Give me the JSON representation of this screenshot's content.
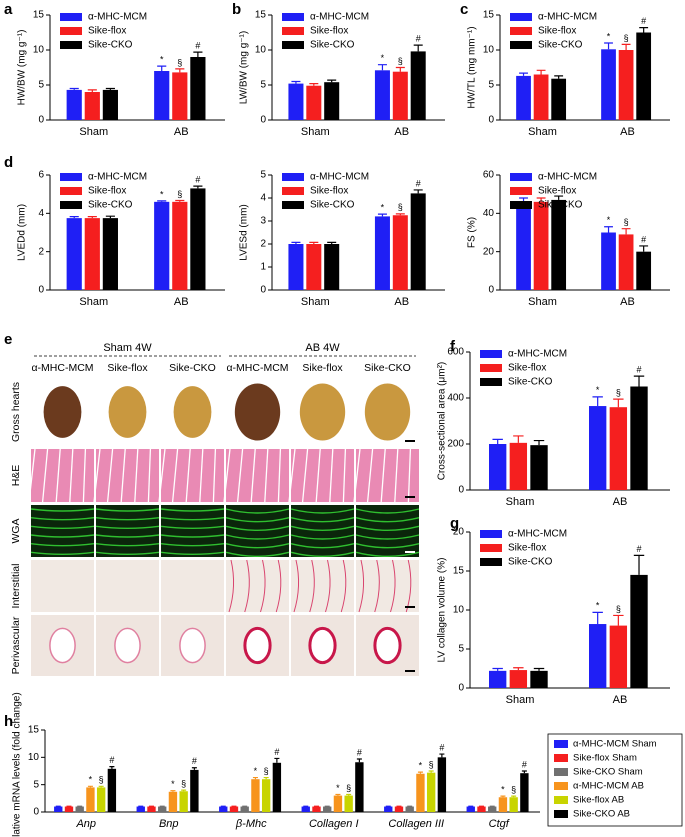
{
  "panel_letters": [
    "a",
    "b",
    "c",
    "d",
    "e",
    "f",
    "g",
    "h"
  ],
  "image_panel": {
    "groups": [
      "Sham 4W",
      "AB 4W"
    ],
    "columns": [
      "α-MHC-MCM",
      "Sike-flox",
      "Sike-CKO",
      "α-MHC-MCM",
      "Sike-flox",
      "Sike-CKO"
    ],
    "rows": [
      "Gross hearts",
      "H&E",
      "WGA",
      "Interstitial",
      "Perivascular"
    ]
  },
  "chart_data": [
    {
      "type": "bar",
      "y_label": "HW/BW (mg g⁻¹)",
      "categories": [
        "Sham",
        "AB"
      ],
      "ylim": [
        0,
        15
      ],
      "yticks": [
        0,
        5,
        10,
        15
      ],
      "legend": "upper left",
      "series": [
        {
          "name": "α-MHC-MCM",
          "color": "#1f1ff5",
          "values": [
            4.3,
            7.0
          ],
          "errors": [
            0.2,
            0.7
          ],
          "labels": [
            null,
            "*"
          ]
        },
        {
          "name": "Sike-flox",
          "color": "#f51f1f",
          "values": [
            4.0,
            6.8
          ],
          "errors": [
            0.3,
            0.5
          ],
          "labels": [
            null,
            "§"
          ]
        },
        {
          "name": "Sike-CKO",
          "color": "#000000",
          "values": [
            4.3,
            9.0
          ],
          "errors": [
            0.2,
            0.7
          ],
          "labels": [
            null,
            "#"
          ]
        }
      ]
    },
    {
      "type": "bar",
      "y_label": "LW/BW (mg g⁻¹)",
      "categories": [
        "Sham",
        "AB"
      ],
      "ylim": [
        0,
        15
      ],
      "yticks": [
        0,
        5,
        10,
        15
      ],
      "legend": "upper left",
      "series": [
        {
          "name": "α-MHC-MCM",
          "color": "#1f1ff5",
          "values": [
            5.2,
            7.1
          ],
          "errors": [
            0.3,
            0.8
          ],
          "labels": [
            null,
            "*"
          ]
        },
        {
          "name": "Sike-flox",
          "color": "#f51f1f",
          "values": [
            4.9,
            6.9
          ],
          "errors": [
            0.3,
            0.6
          ],
          "labels": [
            null,
            "§"
          ]
        },
        {
          "name": "Sike-CKO",
          "color": "#000000",
          "values": [
            5.4,
            9.8
          ],
          "errors": [
            0.3,
            0.9
          ],
          "labels": [
            null,
            "#"
          ]
        }
      ]
    },
    {
      "type": "bar",
      "y_label": "HW/TL (mg mm⁻¹)",
      "categories": [
        "Sham",
        "AB"
      ],
      "ylim": [
        0,
        15
      ],
      "yticks": [
        0,
        5,
        10,
        15
      ],
      "legend": "upper left",
      "series": [
        {
          "name": "α-MHC-MCM",
          "color": "#1f1ff5",
          "values": [
            6.3,
            10.1
          ],
          "errors": [
            0.4,
            0.9
          ],
          "labels": [
            null,
            "*"
          ]
        },
        {
          "name": "Sike-flox",
          "color": "#f51f1f",
          "values": [
            6.5,
            10.0
          ],
          "errors": [
            0.6,
            0.8
          ],
          "labels": [
            null,
            "§"
          ]
        },
        {
          "name": "Sike-CKO",
          "color": "#000000",
          "values": [
            5.9,
            12.5
          ],
          "errors": [
            0.4,
            0.7
          ],
          "labels": [
            null,
            "#"
          ]
        }
      ]
    },
    {
      "type": "bar",
      "y_label": "LVEDd (mm)",
      "categories": [
        "Sham",
        "AB"
      ],
      "ylim": [
        0,
        6
      ],
      "yticks": [
        0,
        2,
        4,
        6
      ],
      "legend": "upper left",
      "series": [
        {
          "name": "α-MHC-MCM",
          "color": "#1f1ff5",
          "values": [
            3.75,
            4.6
          ],
          "errors": [
            0.08,
            0.05
          ],
          "labels": [
            null,
            "*"
          ]
        },
        {
          "name": "Sike-flox",
          "color": "#f51f1f",
          "values": [
            3.75,
            4.6
          ],
          "errors": [
            0.08,
            0.07
          ],
          "labels": [
            null,
            "§"
          ]
        },
        {
          "name": "Sike-CKO",
          "color": "#000000",
          "values": [
            3.75,
            5.3
          ],
          "errors": [
            0.1,
            0.12
          ],
          "labels": [
            null,
            "#"
          ]
        }
      ]
    },
    {
      "type": "bar",
      "y_label": "LVESd (mm)",
      "categories": [
        "Sham",
        "AB"
      ],
      "ylim": [
        0,
        5
      ],
      "yticks": [
        0,
        1,
        2,
        3,
        4,
        5
      ],
      "legend": "upper left",
      "series": [
        {
          "name": "α-MHC-MCM",
          "color": "#1f1ff5",
          "values": [
            2.0,
            3.2
          ],
          "errors": [
            0.07,
            0.1
          ],
          "labels": [
            null,
            "*"
          ]
        },
        {
          "name": "Sike-flox",
          "color": "#f51f1f",
          "values": [
            2.0,
            3.25
          ],
          "errors": [
            0.07,
            0.06
          ],
          "labels": [
            null,
            "§"
          ]
        },
        {
          "name": "Sike-CKO",
          "color": "#000000",
          "values": [
            2.0,
            4.2
          ],
          "errors": [
            0.07,
            0.15
          ],
          "labels": [
            null,
            "#"
          ]
        }
      ]
    },
    {
      "type": "bar",
      "y_label": "FS (%)",
      "categories": [
        "Sham",
        "AB"
      ],
      "ylim": [
        0,
        60
      ],
      "yticks": [
        0,
        20,
        40,
        60
      ],
      "legend": "upper left",
      "series": [
        {
          "name": "α-MHC-MCM",
          "color": "#1f1ff5",
          "values": [
            46,
            30
          ],
          "errors": [
            2,
            3
          ],
          "labels": [
            null,
            "*"
          ]
        },
        {
          "name": "Sike-flox",
          "color": "#f51f1f",
          "values": [
            46,
            29
          ],
          "errors": [
            2,
            3
          ],
          "labels": [
            null,
            "§"
          ]
        },
        {
          "name": "Sike-CKO",
          "color": "#000000",
          "values": [
            47,
            20
          ],
          "errors": [
            2,
            3
          ],
          "labels": [
            null,
            "#"
          ]
        }
      ]
    },
    {
      "type": "bar",
      "y_label": "Cross-sectional area (μm²)",
      "categories": [
        "Sham",
        "AB"
      ],
      "ylim": [
        0,
        600
      ],
      "yticks": [
        0,
        200,
        400,
        600
      ],
      "legend": "upper left",
      "series": [
        {
          "name": "α-MHC-MCM",
          "color": "#1f1ff5",
          "values": [
            200,
            365
          ],
          "errors": [
            20,
            40
          ],
          "labels": [
            null,
            "*"
          ]
        },
        {
          "name": "Sike-flox",
          "color": "#f51f1f",
          "values": [
            205,
            360
          ],
          "errors": [
            30,
            35
          ],
          "labels": [
            null,
            "§"
          ]
        },
        {
          "name": "Sike-CKO",
          "color": "#000000",
          "values": [
            195,
            450
          ],
          "errors": [
            20,
            45
          ],
          "labels": [
            null,
            "#"
          ]
        }
      ]
    },
    {
      "type": "bar",
      "y_label": "LV collagen volume (%)",
      "categories": [
        "Sham",
        "AB"
      ],
      "ylim": [
        0,
        20
      ],
      "yticks": [
        0,
        5,
        10,
        15,
        20
      ],
      "legend": "upper left",
      "series": [
        {
          "name": "α-MHC-MCM",
          "color": "#1f1ff5",
          "values": [
            2.2,
            8.2
          ],
          "errors": [
            0.3,
            1.5
          ],
          "labels": [
            null,
            "*"
          ]
        },
        {
          "name": "Sike-flox",
          "color": "#f51f1f",
          "values": [
            2.3,
            8.0
          ],
          "errors": [
            0.3,
            1.3
          ],
          "labels": [
            null,
            "§"
          ]
        },
        {
          "name": "Sike-CKO",
          "color": "#000000",
          "values": [
            2.2,
            14.5
          ],
          "errors": [
            0.3,
            2.5
          ],
          "labels": [
            null,
            "#"
          ]
        }
      ]
    },
    {
      "type": "bar",
      "y_label": "Relative mRNA levels (fold change)",
      "categories": [
        "Anp",
        "Bnp",
        "β-Mhc",
        "Collagen I",
        "Collagen III",
        "Ctgf"
      ],
      "ylim": [
        0,
        15
      ],
      "yticks": [
        0,
        5,
        10,
        15
      ],
      "legend": "right",
      "series": [
        {
          "name": "α-MHC-MCM Sham",
          "color": "#1f1ff5",
          "values": [
            1,
            1,
            1,
            1,
            1,
            1
          ],
          "errors": [
            0.05,
            0.05,
            0.05,
            0.05,
            0.05,
            0.05
          ]
        },
        {
          "name": "Sike-flox Sham",
          "color": "#f51f1f",
          "values": [
            1,
            1,
            1,
            1,
            1,
            1
          ],
          "errors": [
            0.05,
            0.05,
            0.05,
            0.05,
            0.05,
            0.05
          ]
        },
        {
          "name": "Sike-CKO Sham",
          "color": "#707070",
          "values": [
            1,
            1,
            1,
            1,
            1,
            1
          ],
          "errors": [
            0.05,
            0.05,
            0.05,
            0.05,
            0.05,
            0.05
          ]
        },
        {
          "name": "α-MHC-MCM AB",
          "color": "#f7941d",
          "values": [
            4.5,
            3.7,
            6.0,
            3.0,
            7.0,
            2.7
          ],
          "errors": [
            0.2,
            0.2,
            0.3,
            0.2,
            0.3,
            0.2
          ],
          "labels": [
            "*",
            "*",
            "*",
            "*",
            "*",
            "*"
          ]
        },
        {
          "name": "Sike-flox AB",
          "color": "#c8d400",
          "values": [
            4.5,
            3.8,
            6.0,
            3.0,
            7.2,
            2.7
          ],
          "errors": [
            0.2,
            0.2,
            0.3,
            0.2,
            0.3,
            0.2
          ],
          "labels": [
            "§",
            "§",
            "§",
            "§",
            "§",
            "§"
          ]
        },
        {
          "name": "Sike-CKO AB",
          "color": "#000000",
          "values": [
            7.9,
            7.7,
            9.0,
            9.1,
            10.0,
            7.1
          ],
          "errors": [
            0.4,
            0.4,
            0.8,
            0.6,
            0.6,
            0.4
          ],
          "labels": [
            "#",
            "#",
            "#",
            "#",
            "#",
            "#"
          ]
        }
      ]
    }
  ]
}
